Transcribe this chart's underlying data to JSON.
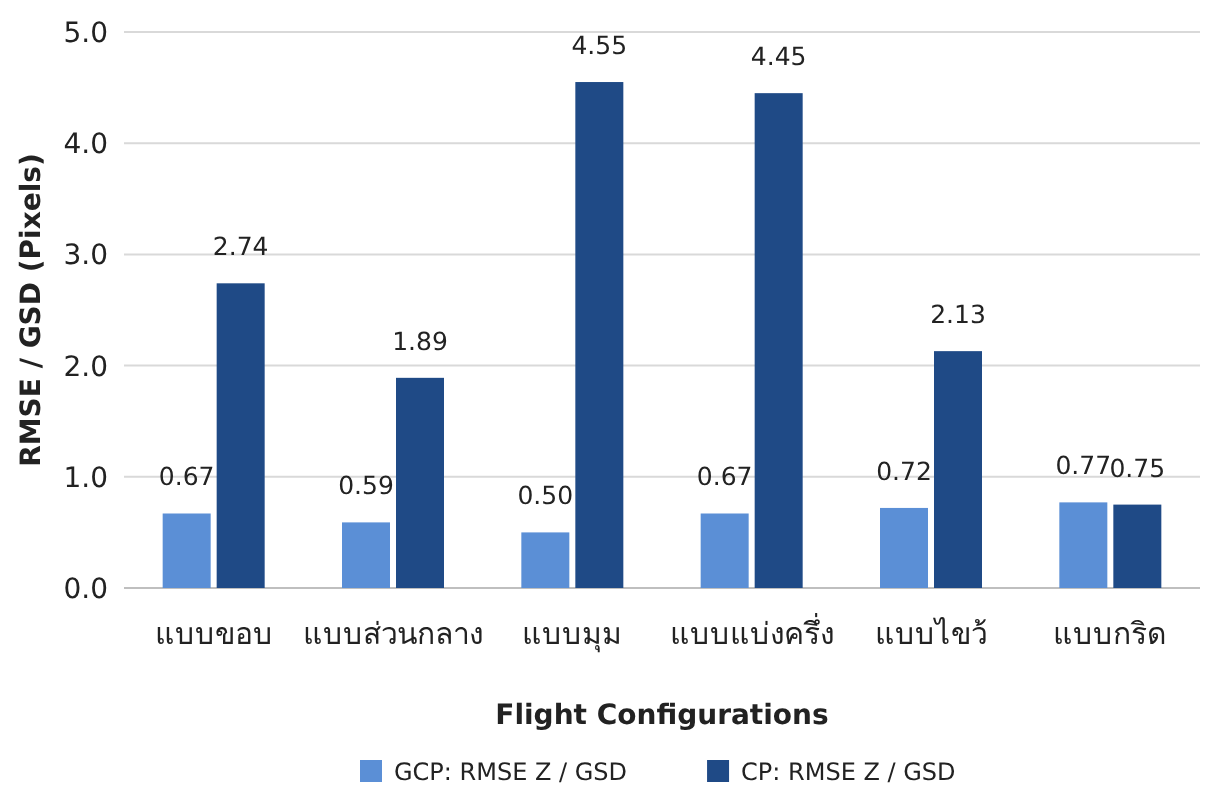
{
  "chart_data": {
    "type": "bar",
    "xlabel": "Flight Configurations",
    "ylabel": "RMSE / GSD (Pixels)",
    "categories": [
      "แบบขอบ",
      "แบบส่วนกลาง",
      "แบบมุม",
      "แบบแบ่งครึ่ง",
      "แบบไขว้",
      "แบบกริด"
    ],
    "series": [
      {
        "name": "GCP: RMSE Z / GSD",
        "color": "#5b8fd6",
        "values": [
          0.67,
          0.59,
          0.5,
          0.67,
          0.72,
          0.77
        ],
        "value_labels": [
          "0.67",
          "0.59",
          "0.50",
          "0.67",
          "0.72",
          "0.77"
        ]
      },
      {
        "name": "CP: RMSE Z / GSD",
        "color": "#1f4a86",
        "values": [
          2.74,
          1.89,
          4.55,
          4.45,
          2.13,
          0.75
        ],
        "value_labels": [
          "2.74",
          "1.89",
          "4.55",
          "4.45",
          "2.13",
          "0.75"
        ]
      }
    ],
    "ylim": [
      0,
      5
    ],
    "yticks": [
      {
        "value": 0,
        "label": "0.0"
      },
      {
        "value": 1,
        "label": "1.0"
      },
      {
        "value": 2,
        "label": "2.0"
      },
      {
        "value": 3,
        "label": "3.0"
      },
      {
        "value": 4,
        "label": "4.0"
      },
      {
        "value": 5,
        "label": "5.0"
      }
    ],
    "grid": "y",
    "legend": "bottom"
  }
}
